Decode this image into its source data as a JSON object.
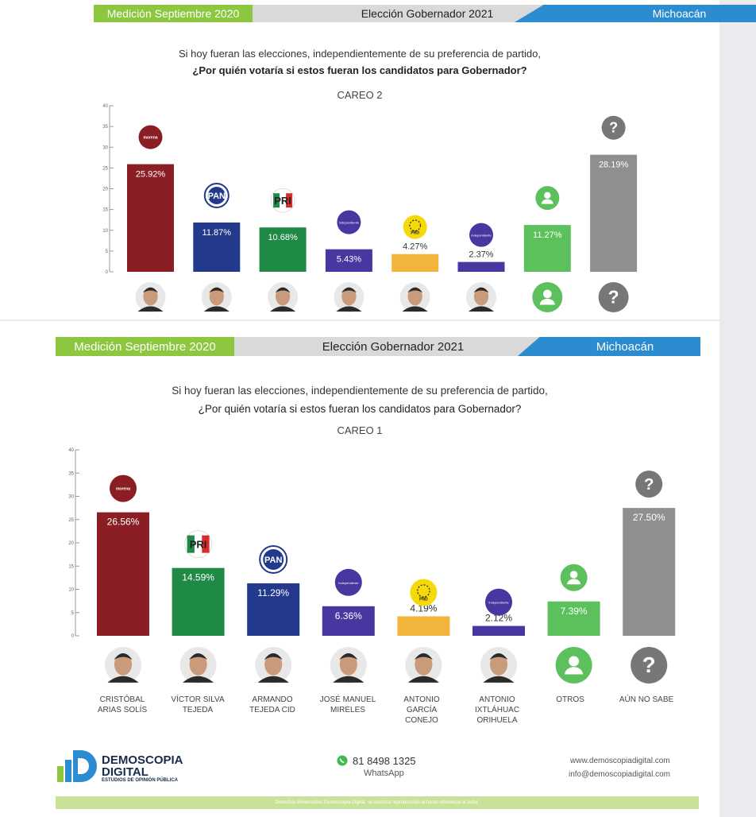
{
  "header": {
    "measurement": "Medición Septiembre 2020",
    "election": "Elección Gobernador 2021",
    "state": "Michoacán"
  },
  "question": {
    "line1": "Si hoy fueran las elecciones, independientemente de su preferencia de partido,",
    "line2": "¿Por quién votaría si estos fueran los candidatos para Gobernador?"
  },
  "colors": {
    "morena": "#8b1e24",
    "pan": "#233a8c",
    "pri": "#1f8a45",
    "independiente": "#4a36a0",
    "prd": "#f2b43b",
    "otros": "#5cc15c",
    "no_sabe": "#8f8f8f"
  },
  "chart_data": [
    {
      "type": "bar",
      "title": "CAREO 2",
      "ylim": [
        0,
        40
      ],
      "yticks": [
        "0",
        "5",
        "10",
        "15",
        "20",
        "25",
        "30",
        "35",
        "40"
      ],
      "categories": [
        "morena",
        "PAN",
        "PRI",
        "Independiente",
        "PRD",
        "Independiente",
        "Otros",
        "Aún no sabe"
      ],
      "values": [
        25.92,
        11.87,
        10.68,
        5.43,
        4.27,
        2.37,
        11.27,
        28.19
      ],
      "labels": [
        "25.92%",
        "11.87%",
        "10.68%",
        "5.43%",
        "4.27%",
        "2.37%",
        "11.27%",
        "28.19%"
      ],
      "party_icons": [
        "morena",
        "PAN",
        "PRI",
        "Independiente",
        "PRD",
        "Independiente",
        "user-icon",
        "question-icon"
      ],
      "bar_colors": [
        "morena",
        "pan",
        "pri",
        "independiente",
        "prd",
        "independiente",
        "otros",
        "no_sabe"
      ]
    },
    {
      "type": "bar",
      "title": "CAREO 1",
      "ylim": [
        0,
        40
      ],
      "yticks": [
        "0",
        "5",
        "10",
        "15",
        "20",
        "25",
        "30",
        "35",
        "40"
      ],
      "categories": [
        "CRISTÓBAL ARIAS SOLÍS",
        "VÍCTOR SILVA TEJEDA",
        "ARMANDO TEJEDA CID",
        "JOSÉ MANUEL MIRELES",
        "ANTONIO GARCÍA CONEJO",
        "ANTONIO IXTLÁHUAC ORIHUELA",
        "OTROS",
        "AÚN NO SABE"
      ],
      "values": [
        26.56,
        14.59,
        11.29,
        6.36,
        4.19,
        2.12,
        7.39,
        27.5
      ],
      "labels": [
        "26.56%",
        "14.59%",
        "11.29%",
        "6.36%",
        "4.19%",
        "2.12%",
        "7.39%",
        "27.50%"
      ],
      "party_icons": [
        "morena",
        "PRI",
        "PAN",
        "Independiente",
        "PRD",
        "Independiente",
        "user-icon",
        "question-icon"
      ],
      "bar_colors": [
        "morena",
        "pri",
        "pan",
        "independiente",
        "prd",
        "independiente",
        "otros",
        "no_sabe"
      ]
    }
  ],
  "candidate_names": [
    "CRISTÓBAL\nARIAS SOLÍS",
    "VÍCTOR SILVA\nTEJEDA",
    "ARMANDO\nTEJEDA CID",
    "JOSÉ MANUEL\nMIRELES",
    "ANTONIO\nGARCÍA\nCONEJO",
    "ANTONIO\nIXTLÁHUAC\nORIHUELA",
    "OTROS",
    "AÚN NO SABE"
  ],
  "footer": {
    "brand_line1": "DEMOSCOPIA",
    "brand_line2": "DIGITAL",
    "brand_tagline": "ESTUDIOS DE OPINIÓN PÚBLICA",
    "phone": "81 8498 1325",
    "phone_label": "WhatsApp",
    "website": "www.demoscopiadigital.com",
    "email": "info@demoscopiadigital.com",
    "copyright": "Derechos Reservados Demoscopia Digital, se autoriza reproducción al hacer referencia al autor."
  }
}
